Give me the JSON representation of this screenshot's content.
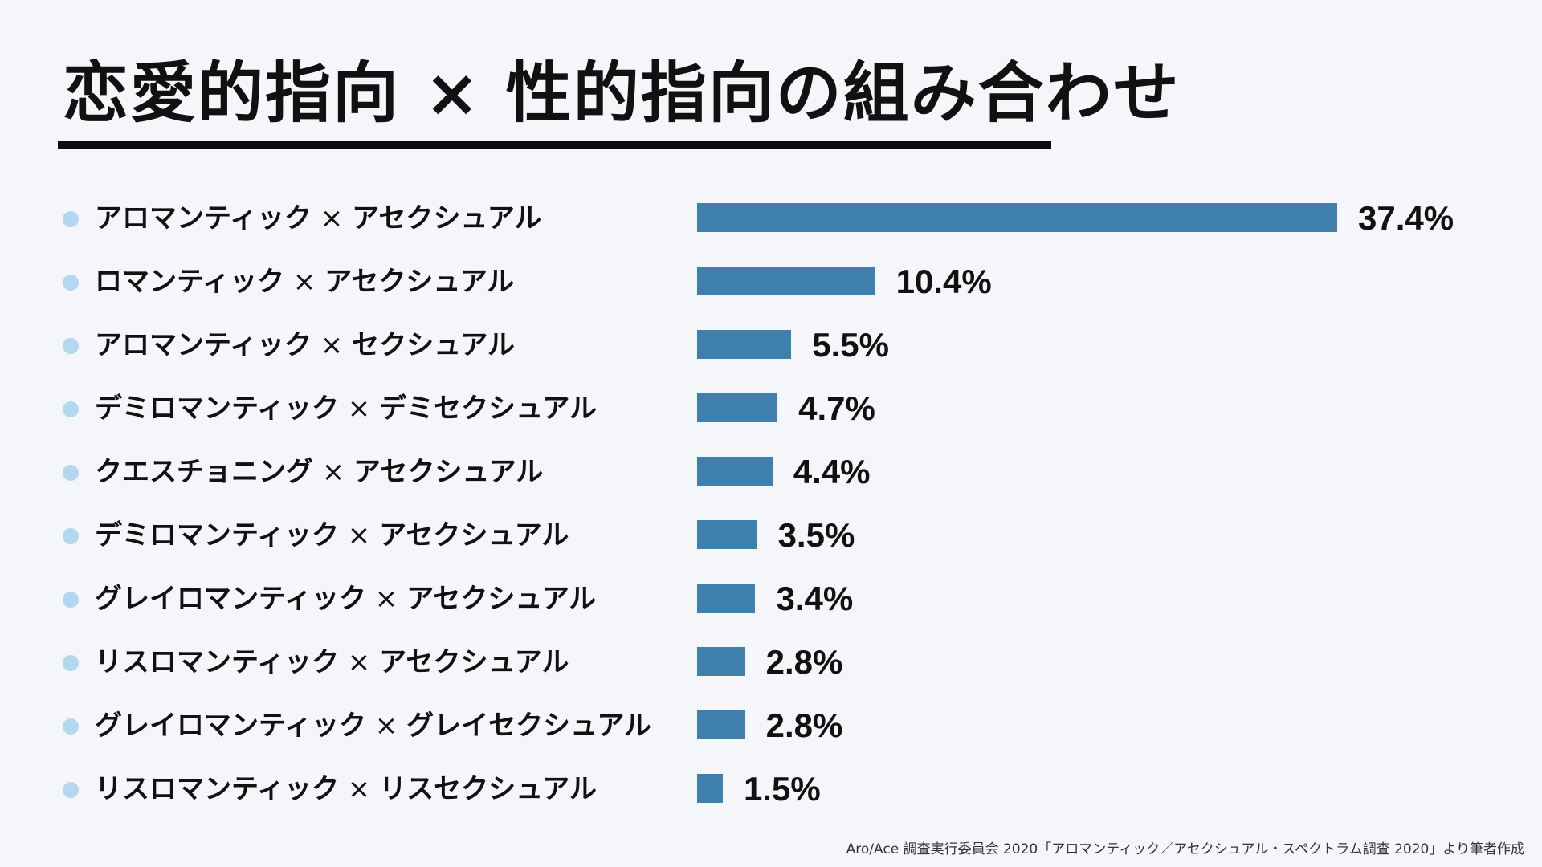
{
  "chart_data": {
    "type": "bar",
    "orientation": "horizontal",
    "title": "恋愛的指向 × 性的指向の組み合わせ",
    "xlabel": "",
    "ylabel": "",
    "unit": "%",
    "xlim": [
      0,
      37.4
    ],
    "grid": false,
    "legend": "none",
    "bar_color": "#3f7fab",
    "bullet_color": "#b3d7ee",
    "categories": [
      {
        "romantic": "アロマンティック",
        "separator": "×",
        "sexual": "アセクシュアル"
      },
      {
        "romantic": "ロマンティック",
        "separator": "×",
        "sexual": "アセクシュアル"
      },
      {
        "romantic": "アロマンティック",
        "separator": "×",
        "sexual": "セクシュアル"
      },
      {
        "romantic": "デミロマンティック",
        "separator": "×",
        "sexual": "デミセクシュアル"
      },
      {
        "romantic": "クエスチョニング",
        "separator": "×",
        "sexual": "アセクシュアル"
      },
      {
        "romantic": "デミロマンティック",
        "separator": "×",
        "sexual": "アセクシュアル"
      },
      {
        "romantic": "グレイロマンティック",
        "separator": "×",
        "sexual": "アセクシュアル"
      },
      {
        "romantic": "リスロマンティック",
        "separator": "×",
        "sexual": "アセクシュアル"
      },
      {
        "romantic": "グレイロマンティック",
        "separator": "×",
        "sexual": "グレイセクシュアル"
      },
      {
        "romantic": "リスロマンティック",
        "separator": "×",
        "sexual": "リスセクシュアル"
      }
    ],
    "values": [
      37.4,
      10.4,
      5.5,
      4.7,
      4.4,
      3.5,
      3.4,
      2.8,
      2.8,
      1.5
    ],
    "value_labels": [
      "37.4%",
      "10.4%",
      "5.5%",
      "4.7%",
      "4.4%",
      "3.5%",
      "3.4%",
      "2.8%",
      "2.8%",
      "1.5%"
    ]
  },
  "source": "Aro/Ace 調査実行委員会 2020「アロマンティック／アセクシュアル・スペクトラム調査 2020」より筆者作成"
}
